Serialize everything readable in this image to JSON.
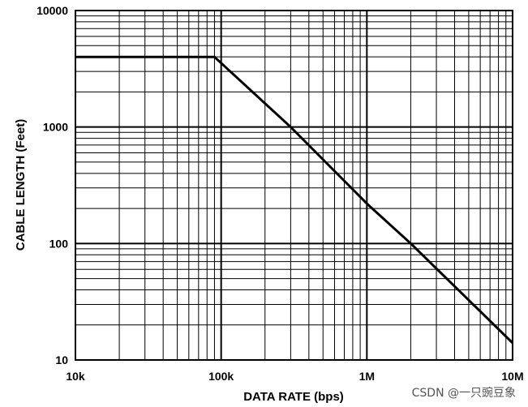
{
  "chart_data": {
    "type": "line",
    "title": "",
    "xlabel": "DATA RATE (bps)",
    "ylabel": "CABLE LENGTH (Feet)",
    "xscale": "log",
    "yscale": "log",
    "xlim": [
      10000,
      10000000
    ],
    "ylim": [
      10,
      10000
    ],
    "grid": true,
    "x_tick_labels": [
      {
        "value": 10000,
        "label": "10k"
      },
      {
        "value": 100000,
        "label": "100k"
      },
      {
        "value": 1000000,
        "label": "1M"
      },
      {
        "value": 10000000,
        "label": "10M"
      }
    ],
    "y_tick_labels": [
      {
        "value": 10,
        "label": "10"
      },
      {
        "value": 100,
        "label": "100"
      },
      {
        "value": 1000,
        "label": "1000"
      },
      {
        "value": 10000,
        "label": "10000"
      }
    ],
    "series": [
      {
        "x": [
          10000,
          90000,
          300000,
          1000000,
          2000000,
          10000000
        ],
        "y": [
          4000,
          4000,
          1000,
          220,
          100,
          14
        ]
      }
    ],
    "line_color": "#000000"
  },
  "watermark": "CSDN @一只豌豆象"
}
